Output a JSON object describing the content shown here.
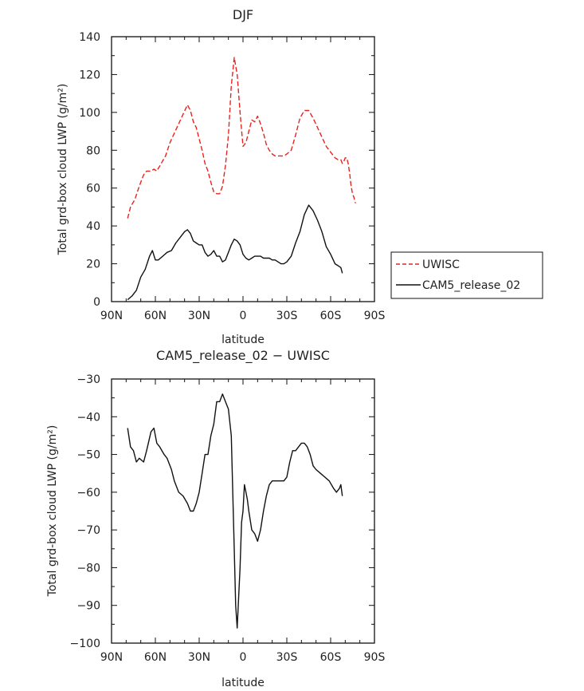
{
  "chart_data": [
    {
      "type": "line",
      "title": "DJF",
      "xlabel": "latitude",
      "ylabel": "Total grd-box cloud LWP (g/m²)",
      "xlim": [
        -90,
        90
      ],
      "ylim": [
        0,
        140
      ],
      "x_ticks": [
        -90,
        -60,
        -30,
        0,
        30,
        60,
        90
      ],
      "x_tick_labels": [
        "90N",
        "60N",
        "30N",
        "0",
        "30S",
        "60S",
        "90S"
      ],
      "y_ticks": [
        0,
        20,
        40,
        60,
        80,
        100,
        120,
        140
      ],
      "y_tick_labels": [
        "0",
        "20",
        "40",
        "60",
        "80",
        "100",
        "120",
        "140"
      ],
      "legend_position": "right",
      "series": [
        {
          "name": "UWISC",
          "color": "#e8231e",
          "dash": "dashed",
          "x": [
            -79,
            -77,
            -74,
            -71,
            -68,
            -66,
            -63,
            -61,
            -59,
            -56,
            -53,
            -50,
            -47,
            -44,
            -41,
            -38,
            -36,
            -34,
            -32,
            -30,
            -28,
            -26,
            -24,
            -22,
            -20,
            -18,
            -16,
            -14,
            -12,
            -10,
            -8,
            -6,
            -4,
            -2,
            0,
            2,
            4,
            6,
            8,
            10,
            12,
            14,
            16,
            18,
            20,
            22,
            24,
            26,
            28,
            30,
            33,
            36,
            39,
            42,
            45,
            48,
            51,
            54,
            57,
            60,
            63,
            65,
            67,
            68,
            69,
            70,
            71,
            72,
            73,
            74,
            75,
            76,
            77
          ],
          "y": [
            44,
            50,
            54,
            61,
            67,
            69,
            69,
            70,
            69,
            73,
            77,
            84,
            89,
            94,
            99,
            104,
            101,
            95,
            92,
            86,
            80,
            73,
            69,
            63,
            58,
            57,
            57,
            61,
            72,
            88,
            114,
            129,
            120,
            100,
            82,
            84,
            90,
            96,
            95,
            98,
            94,
            89,
            83,
            80,
            78,
            77,
            77,
            77,
            77,
            78,
            80,
            88,
            97,
            101,
            101,
            97,
            92,
            87,
            82,
            79,
            76,
            75,
            75,
            73,
            74,
            76,
            76,
            73,
            68,
            61,
            57,
            55,
            52
          ]
        },
        {
          "name": "CAM5_release_02",
          "color": "#111111",
          "dash": "solid",
          "x": [
            -79,
            -76,
            -73,
            -70,
            -67,
            -64,
            -62,
            -60,
            -58,
            -55,
            -52,
            -49,
            -46,
            -43,
            -40,
            -38,
            -36,
            -34,
            -32,
            -30,
            -28,
            -26,
            -24,
            -22,
            -20,
            -18,
            -16,
            -14,
            -12,
            -10,
            -8,
            -6,
            -4,
            -2,
            0,
            2,
            4,
            6,
            8,
            10,
            12,
            14,
            16,
            18,
            20,
            22,
            24,
            26,
            28,
            30,
            33,
            36,
            39,
            42,
            45,
            48,
            51,
            54,
            57,
            60,
            63,
            65,
            67,
            68
          ],
          "y": [
            1,
            3,
            6,
            13,
            17,
            24,
            27,
            22,
            22,
            24,
            26,
            27,
            31,
            34,
            37,
            38,
            36,
            32,
            31,
            30,
            30,
            26,
            24,
            25,
            27,
            24,
            24,
            21,
            22,
            26,
            30,
            33,
            32,
            30,
            25,
            23,
            22,
            23,
            24,
            24,
            24,
            23,
            23,
            23,
            22,
            22,
            21,
            20,
            20,
            21,
            24,
            31,
            37,
            46,
            51,
            48,
            43,
            37,
            29,
            25,
            20,
            19,
            18,
            15
          ]
        }
      ]
    },
    {
      "type": "line",
      "title": "CAM5_release_02 − UWISC",
      "xlabel": "latitude",
      "ylabel": "Total grd-box cloud LWP (g/m²)",
      "xlim": [
        -90,
        90
      ],
      "ylim": [
        -100,
        -30
      ],
      "x_ticks": [
        -90,
        -60,
        -30,
        0,
        30,
        60,
        90
      ],
      "x_tick_labels": [
        "90N",
        "60N",
        "30N",
        "0",
        "30S",
        "60S",
        "90S"
      ],
      "y_ticks": [
        -100,
        -90,
        -80,
        -70,
        -60,
        -50,
        -40,
        -30
      ],
      "y_tick_labels": [
        "−100",
        "−90",
        "−80",
        "−70",
        "−60",
        "−50",
        "−40",
        "−30"
      ],
      "series": [
        {
          "color": "#111111",
          "dash": "solid",
          "x": [
            -79,
            -77,
            -75,
            -73,
            -71,
            -68,
            -66,
            -63,
            -61,
            -59,
            -57,
            -54,
            -52,
            -49,
            -47,
            -44,
            -41,
            -38,
            -36,
            -34,
            -32,
            -30,
            -28,
            -26,
            -24,
            -22,
            -20,
            -18,
            -16,
            -14,
            -12,
            -10,
            -8,
            -6,
            -5,
            -4,
            -3,
            -2,
            -1,
            0,
            1,
            2,
            3,
            4,
            6,
            8,
            10,
            12,
            14,
            16,
            18,
            20,
            22,
            24,
            26,
            28,
            30,
            32,
            34,
            36,
            38,
            40,
            42,
            44,
            46,
            48,
            50,
            53,
            56,
            59,
            62,
            64,
            66,
            67,
            68
          ],
          "y": [
            -43,
            -48,
            -49,
            -52,
            -51,
            -52,
            -49,
            -44,
            -43,
            -47,
            -48,
            -50,
            -51,
            -54,
            -57,
            -60,
            -61,
            -63,
            -65,
            -65,
            -63,
            -60,
            -55,
            -50,
            -50,
            -45,
            -42,
            -36,
            -36,
            -34,
            -36,
            -38,
            -45,
            -75,
            -90,
            -96,
            -88,
            -80,
            -68,
            -65,
            -58,
            -60,
            -62,
            -65,
            -70,
            -71,
            -73,
            -70,
            -65,
            -61,
            -58,
            -57,
            -57,
            -57,
            -57,
            -57,
            -56,
            -52,
            -49,
            -49,
            -48,
            -47,
            -47,
            -48,
            -50,
            -53,
            -54,
            -55,
            -56,
            -57,
            -59,
            -60,
            -59,
            -58,
            -61
          ]
        }
      ]
    }
  ],
  "legend": {
    "items": [
      {
        "label": "UWISC",
        "style": "dashed",
        "color": "#e8231e"
      },
      {
        "label": "CAM5_release_02",
        "style": "solid",
        "color": "#111111"
      }
    ]
  }
}
